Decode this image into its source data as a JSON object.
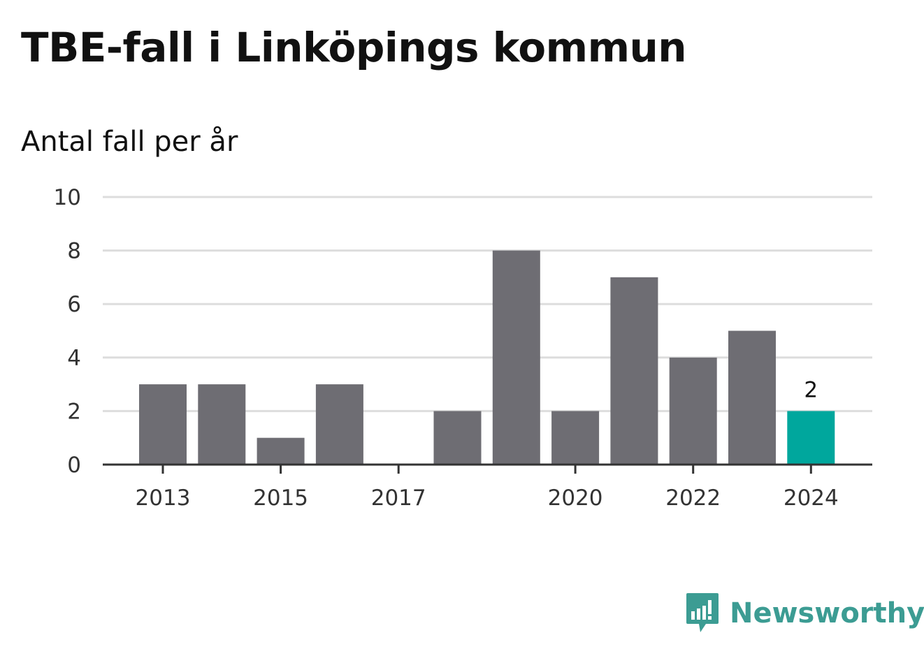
{
  "header": {
    "title": "TBE-fall i Linköpings kommun",
    "subtitle": "Antal fall per år"
  },
  "brand": {
    "name": "Newsworthy",
    "icon": "newsworthy-logo-icon",
    "color": "#3c9c93"
  },
  "colors": {
    "bar": "#6e6d73",
    "highlight": "#00a79d",
    "grid": "#dddddd",
    "axis": "#333333"
  },
  "chart_data": {
    "type": "bar",
    "title": "TBE-fall i Linköpings kommun",
    "subtitle": "Antal fall per år",
    "categories": [
      "2013",
      "2014",
      "2015",
      "2016",
      "2017",
      "2018",
      "2019",
      "2020",
      "2021",
      "2022",
      "2023",
      "2024"
    ],
    "values": [
      3,
      3,
      1,
      3,
      0,
      2,
      8,
      2,
      7,
      4,
      5,
      2
    ],
    "xtick_labels": [
      "2013",
      "2015",
      "2017",
      "2020",
      "2022",
      "2024"
    ],
    "yticks": [
      0,
      2,
      4,
      6,
      8,
      10
    ],
    "ylim": [
      0,
      10
    ],
    "highlight_category": "2024",
    "data_labels": [
      {
        "category": "2024",
        "text": "2"
      }
    ],
    "grid": true,
    "legend": "none"
  }
}
